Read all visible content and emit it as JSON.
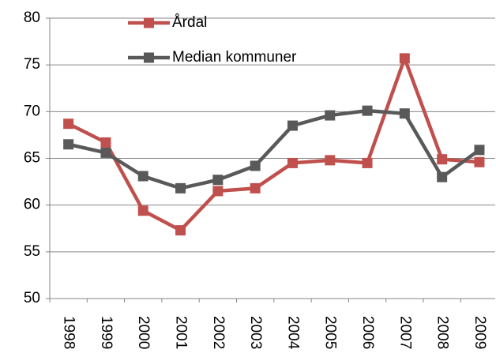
{
  "chart_data": {
    "type": "line",
    "categories": [
      "1998",
      "1999",
      "2000",
      "2001",
      "2002",
      "2003",
      "2004",
      "2005",
      "2006",
      "2007",
      "2008",
      "2009"
    ],
    "series": [
      {
        "name": "Årdal",
        "color": "#c0504d",
        "values": [
          68.7,
          66.7,
          59.4,
          57.3,
          61.5,
          61.8,
          64.5,
          64.8,
          64.5,
          75.7,
          64.9,
          64.6
        ]
      },
      {
        "name": "Median kommuner",
        "color": "#595959",
        "values": [
          66.5,
          65.6,
          63.1,
          61.8,
          62.7,
          64.2,
          68.5,
          69.6,
          70.1,
          69.8,
          63.0,
          65.9
        ]
      }
    ],
    "ylim": [
      50,
      80
    ],
    "yticks": [
      50,
      55,
      60,
      65,
      70,
      75,
      80
    ],
    "grid": true
  }
}
